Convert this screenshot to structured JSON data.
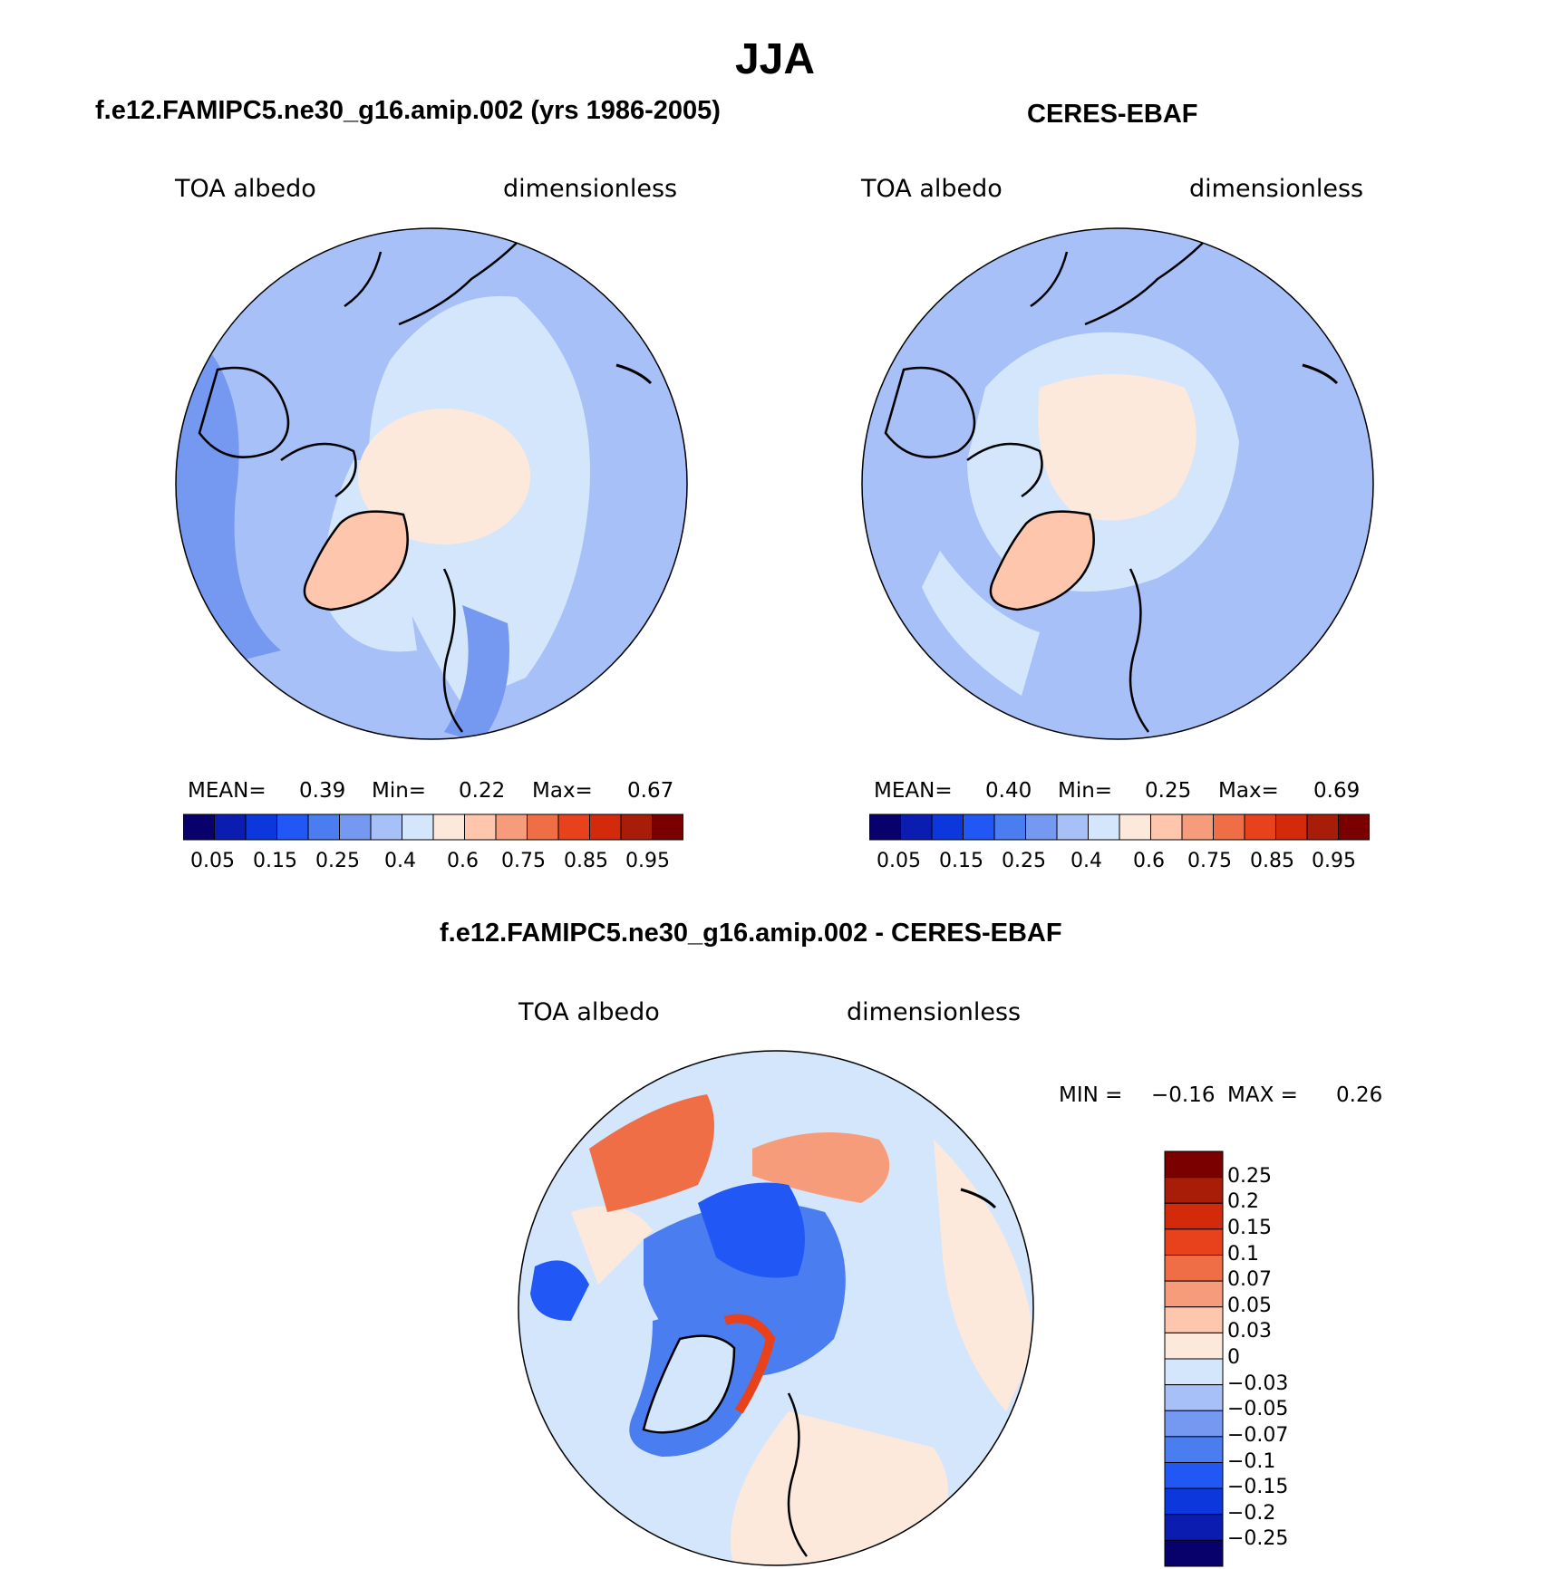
{
  "title": "JJA",
  "colors": {
    "seq_levels": [
      "#08006b",
      "#0a1db0",
      "#0c37dc",
      "#2158f5",
      "#4a7df0",
      "#7598f0",
      "#a7c0f8",
      "#d4e6fb",
      "#fde9dc",
      "#fdc6ad",
      "#f79c7a",
      "#f06e45",
      "#e8421c",
      "#d42a0c",
      "#a81d08",
      "#7a0000"
    ],
    "diff_levels": [
      "#08006b",
      "#0a1db0",
      "#0c37dc",
      "#2158f5",
      "#4a7df0",
      "#7598f0",
      "#a7c0f8",
      "#d4e6fb",
      "#fde9dc",
      "#fdc6ad",
      "#f79c7a",
      "#f06e45",
      "#e8421c",
      "#d42a0c",
      "#a81d08",
      "#7a0000"
    ]
  },
  "chart_data": [
    {
      "type": "heatmap",
      "panel": "model",
      "title": "f.e12.FAMIPC5.ne30_g16.amip.002 (yrs 1986-2005)",
      "left_label": "TOA albedo",
      "right_label": "dimensionless",
      "projection": "north-polar-stereographic",
      "stats": {
        "mean_label": "MEAN=",
        "mean": "0.39",
        "min_label": "Min=",
        "min": "0.22",
        "max_label": "Max=",
        "max": "0.67"
      },
      "colorbar": {
        "orientation": "horizontal",
        "levels": [
          0.05,
          0.1,
          0.15,
          0.2,
          0.25,
          0.3,
          0.4,
          0.5,
          0.6,
          0.7,
          0.75,
          0.8,
          0.85,
          0.9,
          0.95
        ],
        "tick_labels": [
          "0.05",
          "0.15",
          "0.25",
          "0.4",
          "0.6",
          "0.75",
          "0.85",
          "0.95"
        ]
      }
    },
    {
      "type": "heatmap",
      "panel": "obs",
      "title": "CERES-EBAF",
      "left_label": "TOA albedo",
      "right_label": "dimensionless",
      "projection": "north-polar-stereographic",
      "stats": {
        "mean_label": "MEAN=",
        "mean": "0.40",
        "min_label": "Min=",
        "min": "0.25",
        "max_label": "Max=",
        "max": "0.69"
      },
      "colorbar": {
        "orientation": "horizontal",
        "levels": [
          0.05,
          0.1,
          0.15,
          0.2,
          0.25,
          0.3,
          0.4,
          0.5,
          0.6,
          0.7,
          0.75,
          0.8,
          0.85,
          0.9,
          0.95
        ],
        "tick_labels": [
          "0.05",
          "0.15",
          "0.25",
          "0.4",
          "0.6",
          "0.75",
          "0.85",
          "0.95"
        ]
      }
    },
    {
      "type": "heatmap",
      "panel": "difference",
      "title": "f.e12.FAMIPC5.ne30_g16.amip.002 - CERES-EBAF",
      "left_label": "TOA albedo",
      "right_label": "dimensionless",
      "projection": "north-polar-stereographic",
      "stats": {
        "min_label": "MIN =",
        "min": "−0.16",
        "max_label": "MAX =",
        "max": "0.26"
      },
      "colorbar": {
        "orientation": "vertical",
        "levels": [
          -0.25,
          -0.2,
          -0.15,
          -0.1,
          -0.07,
          -0.05,
          -0.03,
          0,
          0.03,
          0.05,
          0.07,
          0.1,
          0.15,
          0.2,
          0.25
        ],
        "tick_labels": [
          "0.25",
          "0.2",
          "0.15",
          "0.1",
          "0.07",
          "0.05",
          "0.03",
          "0",
          "−0.03",
          "−0.05",
          "−0.07",
          "−0.1",
          "−0.15",
          "−0.2",
          "−0.25"
        ]
      }
    }
  ]
}
